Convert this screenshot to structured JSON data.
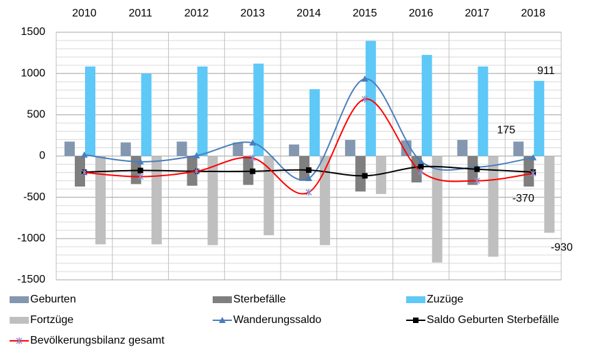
{
  "chart_data": {
    "type": "bar",
    "categories": [
      "2010",
      "2011",
      "2012",
      "2013",
      "2014",
      "2015",
      "2016",
      "2017",
      "2018"
    ],
    "ylim": [
      -1500,
      1500
    ],
    "yticks": [
      -1500,
      -1000,
      -500,
      0,
      500,
      1000,
      1500
    ],
    "grid": true,
    "legend": "bottom",
    "series": [
      {
        "name": "Geburten",
        "type": "bar",
        "color": "#8497b0",
        "values": [
          175,
          165,
          175,
          165,
          140,
          195,
          190,
          195,
          175
        ],
        "label_last": true
      },
      {
        "name": "Sterbefälle",
        "type": "bar",
        "color": "#7f7f7f",
        "values": [
          -370,
          -340,
          -360,
          -350,
          -300,
          -430,
          -320,
          -350,
          -370
        ],
        "label_last": true
      },
      {
        "name": "Zuzüge",
        "type": "bar",
        "color": "#5ec8f7",
        "values": [
          1085,
          1000,
          1085,
          1120,
          810,
          1395,
          1225,
          1085,
          911
        ],
        "label_last": true
      },
      {
        "name": "Fortzüge",
        "type": "bar",
        "color": "#bfbfbf",
        "values": [
          -1070,
          -1070,
          -1080,
          -960,
          -1080,
          -460,
          -1290,
          -1220,
          -930
        ],
        "label_last": true
      },
      {
        "name": "Wanderungssaldo",
        "type": "line",
        "marker": "triangle",
        "color": "#4a7ebb",
        "values": [
          15,
          -70,
          5,
          160,
          -270,
          935,
          -65,
          -135,
          -19
        ]
      },
      {
        "name": "Saldo Geburten Sterbefälle",
        "type": "line",
        "marker": "square",
        "color": "#000000",
        "values": [
          -195,
          -175,
          -185,
          -185,
          -170,
          -240,
          -130,
          -160,
          -195
        ]
      },
      {
        "name": "Bevölkerungsbilanz gesamt",
        "type": "line",
        "marker": "star",
        "color": "#ff0000",
        "values": [
          -200,
          -250,
          -185,
          -25,
          -440,
          690,
          -190,
          -300,
          -210
        ]
      }
    ]
  }
}
